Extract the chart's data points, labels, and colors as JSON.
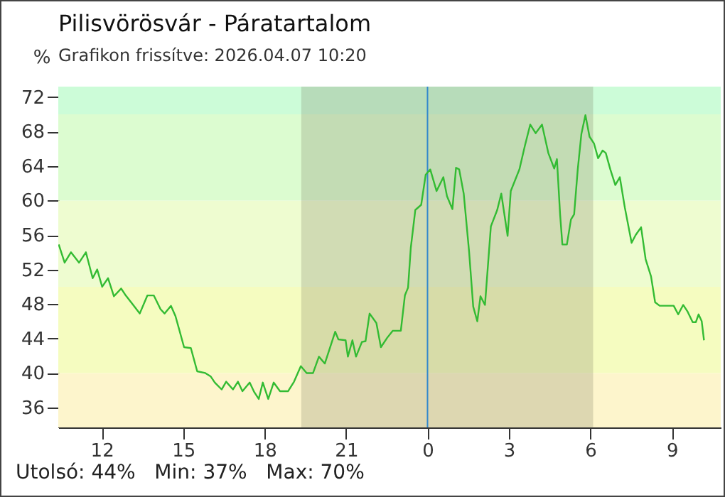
{
  "chart_data": {
    "type": "line",
    "title": "Pilisvörösvár - Páratartalom",
    "subtitle": "Grafikon frissítve: 2026.04.07 10:20",
    "ylabel": "%",
    "xlim": [
      "2026-04-06T10:24",
      "2026-04-07T10:48"
    ],
    "ylim": [
      33.7,
      73.2
    ],
    "xticks": [
      {
        "value": "2026-04-06T12:00",
        "label": "12"
      },
      {
        "value": "2026-04-06T15:00",
        "label": "15"
      },
      {
        "value": "2026-04-06T18:00",
        "label": "18"
      },
      {
        "value": "2026-04-06T21:00",
        "label": "21"
      },
      {
        "value": "2026-04-07T00:00",
        "label": "0"
      },
      {
        "value": "2026-04-07T03:00",
        "label": "3"
      },
      {
        "value": "2026-04-07T06:00",
        "label": "6"
      },
      {
        "value": "2026-04-07T09:00",
        "label": "9"
      }
    ],
    "yticks": [
      36,
      40,
      44,
      48,
      52,
      56,
      60,
      64,
      68,
      72
    ],
    "series": [
      {
        "color": "#33bb33",
        "x": [
          "2026-04-06T10:25",
          "2026-04-06T10:38",
          "2026-04-06T10:52",
          "2026-04-06T11:10",
          "2026-04-06T11:25",
          "2026-04-06T11:40",
          "2026-04-06T11:50",
          "2026-04-06T12:01",
          "2026-04-06T12:14",
          "2026-04-06T12:27",
          "2026-04-06T12:43",
          "2026-04-06T12:53",
          "2026-04-06T13:08",
          "2026-04-06T13:24",
          "2026-04-06T13:41",
          "2026-04-06T13:55",
          "2026-04-06T14:10",
          "2026-04-06T14:19",
          "2026-04-06T14:33",
          "2026-04-06T14:43",
          "2026-04-06T14:52",
          "2026-04-06T15:02",
          "2026-04-06T15:17",
          "2026-04-06T15:31",
          "2026-04-06T15:49",
          "2026-04-06T16:01",
          "2026-04-06T16:10",
          "2026-04-06T16:25",
          "2026-04-06T16:35",
          "2026-04-06T16:50",
          "2026-04-06T17:01",
          "2026-04-06T17:11",
          "2026-04-06T17:27",
          "2026-04-06T17:37",
          "2026-04-06T17:47",
          "2026-04-06T17:56",
          "2026-04-06T18:08",
          "2026-04-06T18:20",
          "2026-04-06T18:34",
          "2026-04-06T18:52",
          "2026-04-06T19:05",
          "2026-04-06T19:20",
          "2026-04-06T19:33",
          "2026-04-06T19:47",
          "2026-04-06T20:00",
          "2026-04-06T20:13",
          "2026-04-06T20:23",
          "2026-04-06T20:36",
          "2026-04-06T20:43",
          "2026-04-06T20:59",
          "2026-04-06T21:04",
          "2026-04-06T21:14",
          "2026-04-06T21:22",
          "2026-04-06T21:35",
          "2026-04-06T21:43",
          "2026-04-06T21:52",
          "2026-04-06T22:07",
          "2026-04-06T22:17",
          "2026-04-06T22:31",
          "2026-04-06T22:43",
          "2026-04-06T23:01",
          "2026-04-06T23:10",
          "2026-04-06T23:17",
          "2026-04-06T23:23",
          "2026-04-06T23:33",
          "2026-04-06T23:46",
          "2026-04-06T23:56",
          "2026-04-07T00:06",
          "2026-04-07T00:20",
          "2026-04-07T00:35",
          "2026-04-07T00:43",
          "2026-04-07T00:55",
          "2026-04-07T01:03",
          "2026-04-07T01:10",
          "2026-04-07T01:20",
          "2026-04-07T01:32",
          "2026-04-07T01:41",
          "2026-04-07T01:50",
          "2026-04-07T01:57",
          "2026-04-07T02:07",
          "2026-04-07T02:20",
          "2026-04-07T02:34",
          "2026-04-07T02:43",
          "2026-04-07T02:57",
          "2026-04-07T03:04",
          "2026-04-07T03:23",
          "2026-04-07T03:35",
          "2026-04-07T03:47",
          "2026-04-07T03:59",
          "2026-04-07T04:13",
          "2026-04-07T04:27",
          "2026-04-07T04:40",
          "2026-04-07T04:46",
          "2026-04-07T04:53",
          "2026-04-07T04:58",
          "2026-04-07T05:08",
          "2026-04-07T05:17",
          "2026-04-07T05:24",
          "2026-04-07T05:32",
          "2026-04-07T05:40",
          "2026-04-07T05:49",
          "2026-04-07T05:58",
          "2026-04-07T06:08",
          "2026-04-07T06:17",
          "2026-04-07T06:27",
          "2026-04-07T06:34",
          "2026-04-07T06:44",
          "2026-04-07T06:55",
          "2026-04-07T07:05",
          "2026-04-07T07:16",
          "2026-04-07T07:31",
          "2026-04-07T07:40",
          "2026-04-07T07:52",
          "2026-04-07T08:02",
          "2026-04-07T08:14",
          "2026-04-07T08:23",
          "2026-04-07T08:33",
          "2026-04-07T09:04",
          "2026-04-07T09:14",
          "2026-04-07T09:25",
          "2026-04-07T09:35",
          "2026-04-07T09:46",
          "2026-04-07T09:53",
          "2026-04-07T09:59",
          "2026-04-07T10:06",
          "2026-04-07T10:11"
        ],
        "values": [
          54.9,
          52.8,
          54,
          52.8,
          54,
          51,
          52,
          50,
          51,
          48.9,
          49.8,
          49,
          48,
          46.9,
          49,
          49,
          47.4,
          46.9,
          47.8,
          46.6,
          44.9,
          43,
          42.9,
          40.2,
          40,
          39.6,
          38.9,
          38.1,
          39,
          38.1,
          39,
          37.9,
          38.9,
          37.8,
          37,
          38.9,
          37,
          38.9,
          37.9,
          37.9,
          39,
          40.8,
          40,
          40,
          41.9,
          41.1,
          42.7,
          44.8,
          43.9,
          43.8,
          41.9,
          43.8,
          41.9,
          43.6,
          43.7,
          46.9,
          45.8,
          43,
          44.1,
          44.9,
          44.9,
          49,
          49.9,
          54.5,
          58.9,
          59.5,
          63,
          63.6,
          61.1,
          62.7,
          60.5,
          59,
          63.8,
          63.6,
          60.8,
          54,
          47.7,
          46,
          48.9,
          47.9,
          57,
          58.9,
          60.8,
          55.9,
          61.1,
          63.6,
          66.3,
          68.8,
          67.8,
          68.8,
          65.5,
          63.7,
          64.8,
          58.4,
          54.9,
          54.9,
          57.8,
          58.4,
          63.6,
          67.7,
          69.9,
          67.4,
          66.6,
          64.9,
          65.8,
          65.5,
          63.6,
          61.8,
          62.7,
          59.2,
          55.1,
          56,
          56.9,
          53.2,
          51.2,
          48.2,
          47.8,
          47.8,
          46.8,
          47.9,
          47.1,
          45.9,
          45.9,
          46.8,
          46,
          43.8
        ]
      }
    ],
    "bands": [
      {
        "axis": "y",
        "from": 33.7,
        "to": 40,
        "color": "#fdf5cc"
      },
      {
        "axis": "y",
        "from": 40,
        "to": 50,
        "color": "#f5fcc0"
      },
      {
        "axis": "y",
        "from": 50,
        "to": 60,
        "color": "#eefcd0"
      },
      {
        "axis": "y",
        "from": 60,
        "to": 70,
        "color": "#dcfcd0"
      },
      {
        "axis": "y",
        "from": 70,
        "to": 73.2,
        "color": "#ccfcd8"
      },
      {
        "axis": "x",
        "from": "2026-04-06T19:21",
        "to": "2026-04-07T06:06",
        "color": "#6e6e50"
      }
    ],
    "ref_lines": [
      {
        "axis": "x",
        "value": "2026-04-07T00:00",
        "color": "#3388cc"
      }
    ],
    "annotations": [
      "Utolsó: 44%   Min: 37%   Max: 70%"
    ]
  }
}
